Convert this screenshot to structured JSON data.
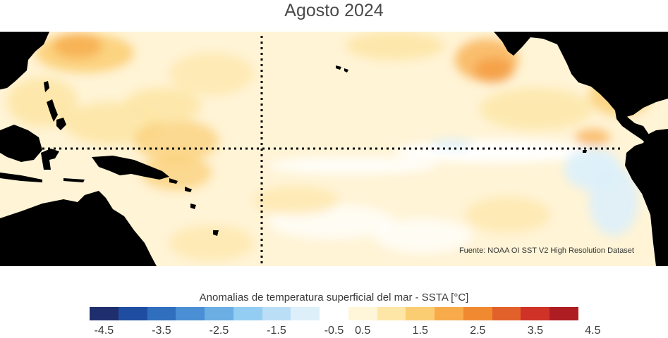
{
  "title": "Agosto 2024",
  "source": "Fuente: NOAA OI SST V2 High Resolution Dataset",
  "colorbar": {
    "title": "Anomalias de temperatura superficial del mar - SSTA  [°C]",
    "colors": [
      "#1f2f6e",
      "#1f4ea0",
      "#2f6fbe",
      "#4a8fd4",
      "#6aaee4",
      "#93cdf2",
      "#b9def5",
      "#ddf0fa",
      "#ffffff",
      "#fff6d9",
      "#fde6a6",
      "#fbcd72",
      "#f8ab4b",
      "#f08a30",
      "#e2612a",
      "#cf3328",
      "#ad1d22"
    ],
    "ticks": [
      "-4.5",
      "-3.5",
      "-2.5",
      "-1.5",
      "-0.5",
      "0.5",
      "1.5",
      "2.5",
      "3.5",
      "4.5"
    ]
  },
  "map": {
    "land_color": "#000000",
    "ocean_color": "#fff4d6",
    "gridline_color": "#000000"
  }
}
